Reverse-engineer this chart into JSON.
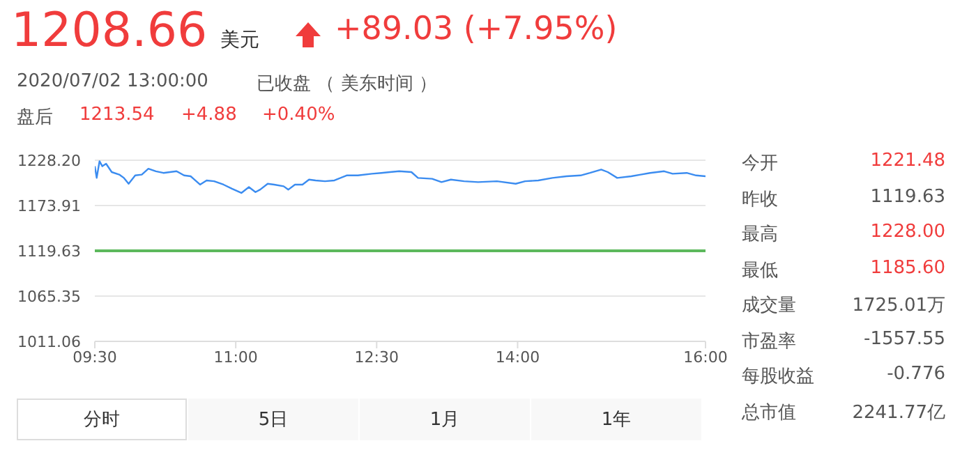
{
  "chart_data": {
    "type": "line",
    "title": "1208.66",
    "annotations": [
      "美元",
      "+89.03 (+7.95%)",
      "2020/07/02 13:00:00",
      "已收盘 （ 美东时间 ）",
      "盘后",
      "1213.54",
      "+4.88",
      "+0.40%",
      "今开",
      "1221.48",
      "昨收",
      "1119.63",
      "最高",
      "1228.00",
      "最低",
      "1185.60",
      "成交量",
      "1725.01万",
      "市盈率",
      "-1557.55",
      "每股收益",
      "-0.776",
      "总市值",
      "2241.77亿",
      "分时",
      "5日",
      "1月",
      "1年"
    ],
    "series": [
      {
        "color": "#3b8cf0",
        "x": [
          9.5,
          9.52,
          9.55,
          9.58,
          9.62,
          9.68,
          9.76,
          9.81,
          9.86,
          9.93,
          10.0,
          10.07,
          10.15,
          10.23,
          10.3,
          10.37,
          10.45,
          10.52,
          10.62,
          10.69,
          10.77,
          10.87,
          10.96,
          11.06,
          11.14,
          11.21,
          11.26,
          11.34,
          11.41,
          11.51,
          11.56,
          11.63,
          11.71,
          11.78,
          11.85,
          11.95,
          12.05,
          12.18,
          12.3,
          12.45,
          12.55,
          12.64,
          12.74,
          12.87,
          12.94,
          13.09,
          13.19,
          13.29,
          13.43,
          13.58,
          13.78,
          13.98,
          14.08,
          14.22,
          14.37,
          14.52,
          14.67,
          14.77,
          14.89,
          14.96,
          15.06,
          15.21,
          15.31,
          15.41,
          15.56,
          15.65,
          15.8,
          15.9,
          16.0
        ],
        "values": [
          1221,
          1207,
          1227,
          1221,
          1224,
          1214,
          1211,
          1207,
          1200,
          1210,
          1211,
          1218,
          1215,
          1213,
          1214,
          1215,
          1210,
          1209,
          1199,
          1204,
          1203,
          1199,
          1194,
          1189,
          1196,
          1190,
          1193,
          1200,
          1199,
          1197,
          1193,
          1199,
          1199,
          1205,
          1204,
          1203,
          1204,
          1210,
          1210,
          1212,
          1213,
          1214,
          1215,
          1214,
          1207,
          1206,
          1202,
          1205,
          1203,
          1202,
          1203,
          1200,
          1203,
          1204,
          1207,
          1209,
          1210,
          1213,
          1217,
          1214,
          1207,
          1209,
          1211,
          1213,
          1215,
          1212,
          1213,
          1210,
          1209
        ]
      }
    ],
    "xlim": [
      9.5,
      16
    ],
    "xticks": [
      {
        "value": 9.5,
        "label": "09:30"
      },
      {
        "value": 11,
        "label": "11:00"
      },
      {
        "value": 12.5,
        "label": "12:30"
      },
      {
        "value": 14,
        "label": "14:00"
      },
      {
        "value": 16,
        "label": "16:00"
      }
    ],
    "ylim": [
      1011.06,
      1228.2
    ],
    "yticks": [
      {
        "value": 1011.06,
        "label": "1011.06"
      },
      {
        "value": 1065.35,
        "label": "1065.35"
      },
      {
        "value": 1119.63,
        "label": "1119.63"
      },
      {
        "value": 1173.91,
        "label": "1173.91"
      },
      {
        "value": 1228.2,
        "label": "1228.20"
      }
    ],
    "ref_lines": [
      {
        "axis": "y",
        "value": 1119.63,
        "color": "#5cb85c"
      }
    ],
    "grid": "y",
    "marker": "none",
    "line_style": "solid"
  }
}
